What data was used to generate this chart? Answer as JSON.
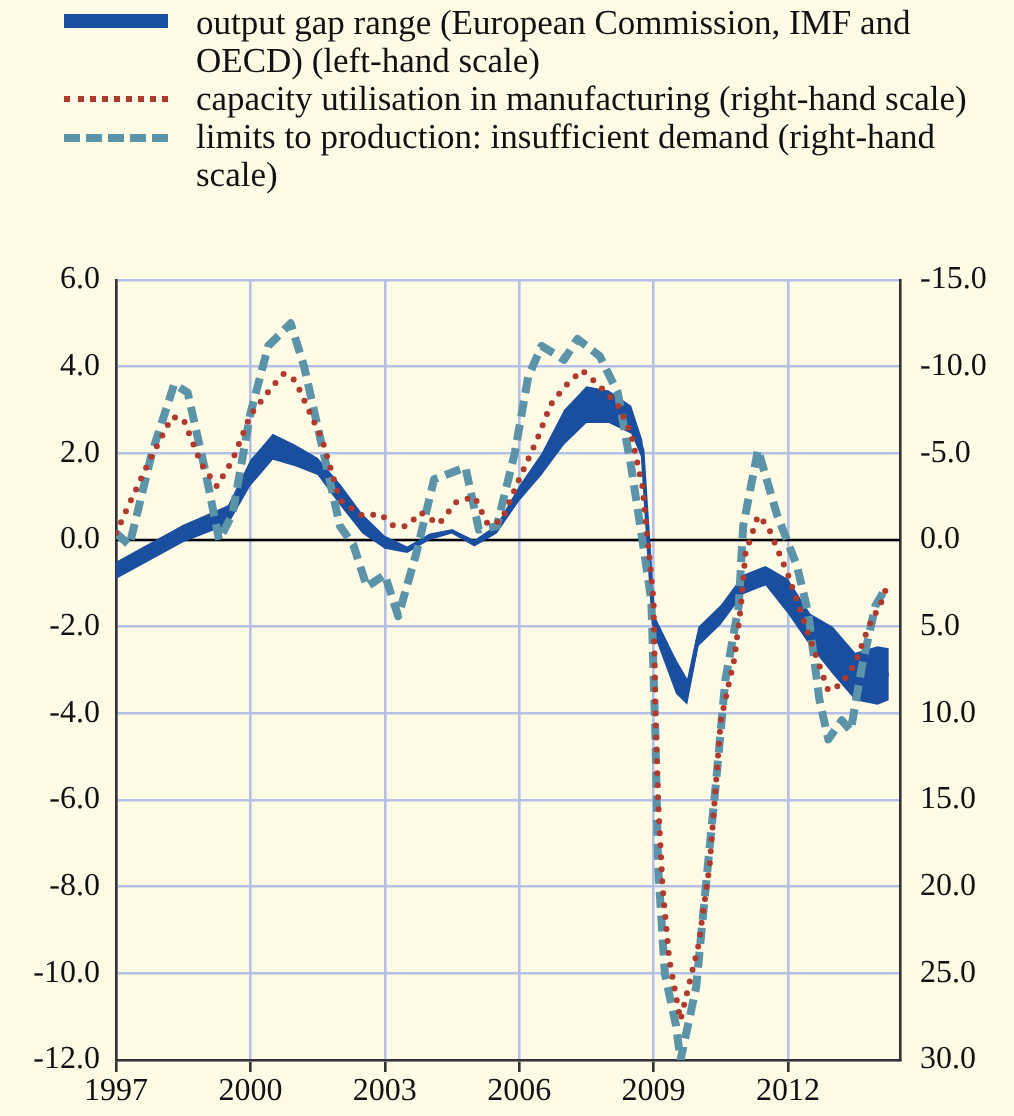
{
  "chart_data": {
    "type": "line",
    "legend": "top left",
    "grid": true,
    "xlim": [
      1997,
      2014.5
    ],
    "xticks": [
      1997,
      2000,
      2003,
      2006,
      2009,
      2012
    ],
    "ylim": [
      -12,
      6
    ],
    "yticks": [
      {
        "value": -12,
        "label": "-12.0"
      },
      {
        "value": -10,
        "label": "-10.0"
      },
      {
        "value": -8,
        "label": "-8.0"
      },
      {
        "value": -6,
        "label": "-6.0"
      },
      {
        "value": -4,
        "label": "-4.0"
      },
      {
        "value": -2,
        "label": "-2.0"
      },
      {
        "value": 0,
        "label": "0.0"
      },
      {
        "value": 2,
        "label": "2.0"
      },
      {
        "value": 4,
        "label": "4.0"
      },
      {
        "value": 6,
        "label": "6.0"
      }
    ],
    "y2lim": [
      30,
      -15
    ],
    "y2ticks": [
      {
        "value": 30,
        "label": "30.0"
      },
      {
        "value": 25,
        "label": "25.0"
      },
      {
        "value": 20,
        "label": "20.0"
      },
      {
        "value": 15,
        "label": "15.0"
      },
      {
        "value": 10,
        "label": "10.0"
      },
      {
        "value": 5,
        "label": "5.0"
      },
      {
        "value": 0,
        "label": "0.0"
      },
      {
        "value": -5,
        "label": "-5.0"
      },
      {
        "value": -10,
        "label": "-10.0"
      },
      {
        "value": -15,
        "label": "-15.0"
      }
    ],
    "ref_lines": [
      {
        "axis": "y",
        "value": 0,
        "color": "#000000"
      }
    ],
    "series": [
      {
        "name": "output gap range (European Commission, IMF and OECD) (left-hand scale)",
        "color": "#1a4fa0",
        "line_style": "solid",
        "x": [
          1997,
          1998.5,
          1999.5,
          2000,
          2000.5,
          2001,
          2001.5,
          2002,
          2002.5,
          2003,
          2003.5,
          2004,
          2004.5,
          2005,
          2005.5,
          2006,
          2006.5,
          2007,
          2007.5,
          2008,
          2008.5,
          2008.75,
          2009,
          2009.5,
          2009.75,
          2010,
          2010.5,
          2011,
          2011.5,
          2012,
          2012.5,
          2013,
          2013.5,
          2014,
          2014.25
        ],
        "values": [
          -0.7,
          0.15,
          0.58,
          1.55,
          2.15,
          1.95,
          1.7,
          1.05,
          0.38,
          -0.05,
          -0.23,
          0.08,
          0.2,
          -0.08,
          0.25,
          1.08,
          1.75,
          2.6,
          3.13,
          3.08,
          2.78,
          2.08,
          -1.93,
          -3.15,
          -3.5,
          -2.23,
          -1.73,
          -1.03,
          -0.83,
          -1.3,
          -2.08,
          -2.55,
          -3.15,
          -3.13,
          -3.1
        ],
        "lower": [
          -0.9,
          -0.05,
          0.35,
          1.25,
          1.85,
          1.7,
          1.5,
          0.8,
          0.15,
          -0.2,
          -0.3,
          0,
          0.15,
          -0.15,
          0.15,
          0.9,
          1.5,
          2.2,
          2.7,
          2.7,
          2.45,
          1.85,
          -2.15,
          -3.55,
          -3.8,
          -2.45,
          -1.95,
          -1.25,
          -1.05,
          -1.7,
          -2.45,
          -3.1,
          -3.7,
          -3.8,
          -3.7
        ],
        "upper": [
          -0.5,
          0.35,
          0.8,
          1.85,
          2.45,
          2.2,
          1.9,
          1.3,
          0.6,
          0.1,
          -0.15,
          0.15,
          0.25,
          0,
          0.35,
          1.25,
          2,
          3,
          3.55,
          3.45,
          3.1,
          2.3,
          -1.7,
          -2.75,
          -3.2,
          -2,
          -1.5,
          -0.8,
          -0.6,
          -0.9,
          -1.7,
          -2,
          -2.6,
          -2.45,
          -2.5
        ]
      },
      {
        "name": "capacity utilisation in manufacturing (right-hand scale)",
        "color": "#b03a2e",
        "axis": "y2",
        "line_style": "dotted",
        "x": [
          1997,
          1997.3,
          1997.75,
          1998.25,
          1998.5,
          1998.9,
          1999.25,
          1999.6,
          2000,
          2000.5,
          2000.75,
          2001,
          2001.3,
          2001.6,
          2002,
          2002.5,
          2002.9,
          2003.2,
          2003.5,
          2003.8,
          2004.2,
          2004.6,
          2005,
          2005.3,
          2005.6,
          2006,
          2006.4,
          2006.7,
          2007,
          2007.4,
          2007.75,
          2008.2,
          2008.5,
          2008.75,
          2009,
          2009.04,
          2009.1,
          2009.2,
          2009.35,
          2009.6,
          2010,
          2010.25,
          2010.5,
          2010.8,
          2010.95,
          2011.05,
          2011.33,
          2011.55,
          2012,
          2012.45,
          2012.9,
          2013.2,
          2013.5,
          2013.8,
          2014.1,
          2014.2
        ],
        "values": [
          -0.4,
          -2.1,
          -4.6,
          -7.1,
          -7,
          -4.4,
          -3.1,
          -4.6,
          -7.2,
          -8.9,
          -9.6,
          -9.2,
          -7.5,
          -5.8,
          -2.3,
          -1.4,
          -1.5,
          -0.8,
          -0.8,
          -1.6,
          -0.9,
          -2.2,
          -2.5,
          -0.9,
          -1.1,
          -3.5,
          -5.8,
          -7.8,
          -8.8,
          -9.8,
          -9,
          -7.8,
          -6.1,
          -3.1,
          3.5,
          10,
          15,
          20,
          24.2,
          27.7,
          23.4,
          18.8,
          10.4,
          6.9,
          3.8,
          0.8,
          -1.4,
          -0.8,
          2,
          5.4,
          8.7,
          8.3,
          7.1,
          5,
          3.5,
          2.7
        ]
      },
      {
        "name": "limits to production: insufficient demand (right-hand scale)",
        "color": "#5b93a8",
        "axis": "y2",
        "line_style": "dashed",
        "x": [
          1997,
          1997.3,
          1997.8,
          1998.3,
          1998.6,
          1999,
          1999.3,
          1999.6,
          2000,
          2000.4,
          2000.9,
          2001.2,
          2001.6,
          2002,
          2002.3,
          2002.6,
          2003,
          2003.3,
          2003.7,
          2004.1,
          2004.5,
          2004.8,
          2005.1,
          2005.5,
          2005.9,
          2006.2,
          2006.5,
          2007,
          2007.3,
          2007.8,
          2008.2,
          2008.5,
          2008.75,
          2008.95,
          2009.04,
          2009.1,
          2009.25,
          2009.5,
          2009.6,
          2009.95,
          2010.15,
          2010.4,
          2010.6,
          2010.9,
          2011,
          2011.33,
          2011.75,
          2012.2,
          2012.45,
          2012.7,
          2012.9,
          2013.2,
          2013.4,
          2013.65,
          2013.95,
          2014.2
        ],
        "values": [
          -0.4,
          0.3,
          -5,
          -9,
          -8.5,
          -3.9,
          0,
          -1.5,
          -7.3,
          -11.2,
          -12.5,
          -10,
          -5.4,
          -0.8,
          0.3,
          2.7,
          2,
          4.4,
          0.8,
          -3.5,
          -3.9,
          -4.2,
          -0.6,
          -0.8,
          -5,
          -9.4,
          -11.2,
          -10.4,
          -11.6,
          -10.6,
          -8.5,
          -4.2,
          0,
          3.5,
          11.2,
          18.8,
          25,
          28,
          30,
          25.8,
          20.4,
          13.8,
          8.1,
          3.8,
          -0.8,
          -5.2,
          -1.5,
          1.5,
          4.2,
          9.2,
          11.5,
          10.4,
          11,
          7.3,
          3.8,
          2.7
        ]
      }
    ]
  }
}
